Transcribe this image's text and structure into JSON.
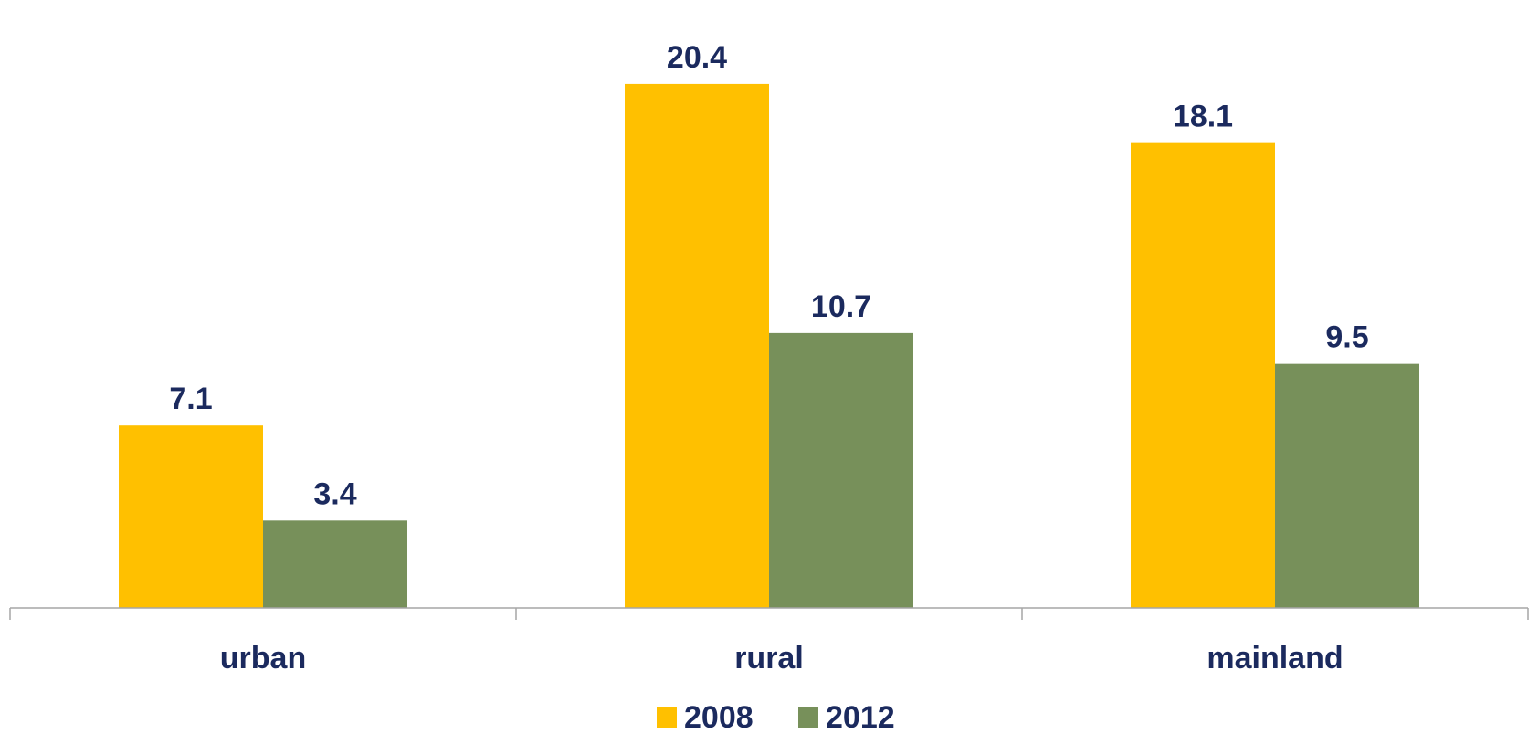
{
  "chart_data": {
    "type": "bar",
    "categories": [
      "urban",
      "rural",
      "mainland"
    ],
    "series": [
      {
        "name": "2008",
        "values": [
          7.1,
          20.4,
          18.1
        ],
        "color": "#ffc000"
      },
      {
        "name": "2012",
        "values": [
          3.4,
          10.7,
          9.5
        ],
        "color": "#77905a"
      }
    ],
    "title": "",
    "xlabel": "",
    "ylabel": "",
    "ylim": [
      0,
      22.6
    ],
    "grid": false,
    "legend_position": "bottom",
    "colors": {
      "label_text": "#1b2a5e",
      "axis": "#a6a6a6"
    }
  }
}
